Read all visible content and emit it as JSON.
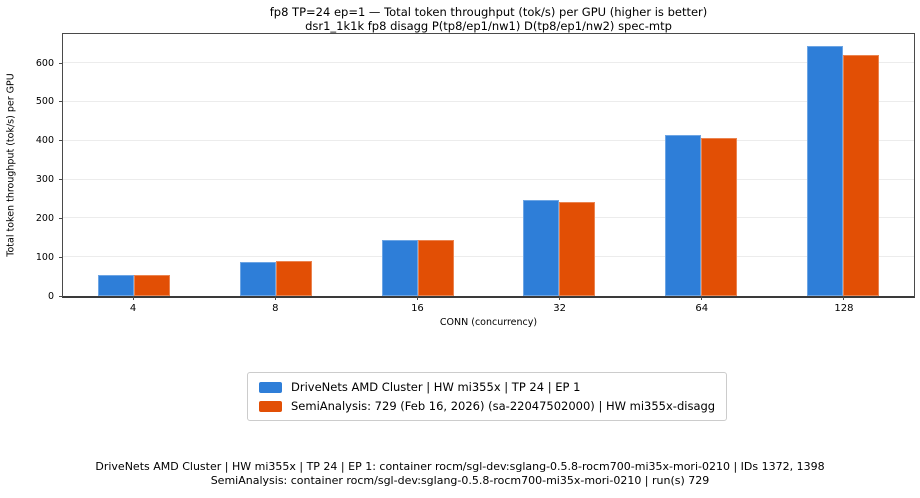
{
  "title": "fp8 TP=24 ep=1 — Total token throughput (tok/s) per GPU (higher is better)",
  "subtitle": "dsr1_1k1k fp8 disagg P(tp8/ep1/nw1) D(tp8/ep1/nw2) spec-mtp",
  "chart_data": {
    "type": "bar",
    "categories": [
      "4",
      "8",
      "16",
      "32",
      "64",
      "128"
    ],
    "series": [
      {
        "name": "DriveNets AMD Cluster | HW mi355x | TP 24 | EP 1",
        "color": "#2e7ed8",
        "values": [
          53,
          88,
          144,
          247,
          415,
          643
        ]
      },
      {
        "name": "SemiAnalysis: 729 (Feb 16, 2026) (sa-22047502000) | HW mi355x-disagg",
        "color": "#e24f05",
        "values": [
          55,
          89,
          145,
          243,
          407,
          620
        ]
      }
    ],
    "xlabel": "CONN (concurrency)",
    "ylabel": "Total token throughput (tok/s) per GPU",
    "ylim": [
      0,
      675
    ],
    "yticks": [
      0,
      100,
      200,
      300,
      400,
      500,
      600
    ],
    "grid": "horizontal",
    "legend_position": "below-chart"
  },
  "footer": {
    "line1": "DriveNets AMD Cluster | HW mi355x | TP 24 | EP 1: container rocm/sgl-dev:sglang-0.5.8-rocm700-mi35x-mori-0210 | IDs 1372, 1398",
    "line2": "SemiAnalysis: container rocm/sgl-dev:sglang-0.5.8-rocm700-mi35x-mori-0210 | run(s) 729"
  }
}
